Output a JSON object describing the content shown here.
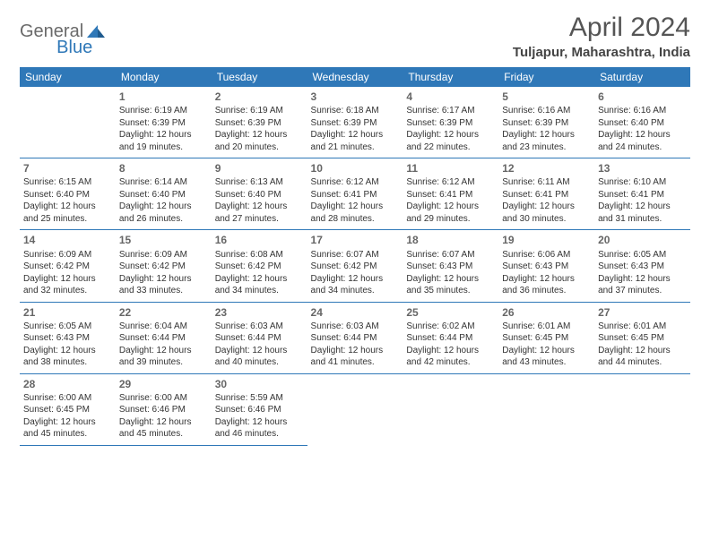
{
  "logo": {
    "general": "General",
    "blue": "Blue"
  },
  "header": {
    "title": "April 2024",
    "location": "Tuljapur, Maharashtra, India"
  },
  "colors": {
    "brand": "#2f78b8",
    "headerRow": "#2f78b8",
    "text": "#333333",
    "muted": "#666666",
    "bg": "#ffffff"
  },
  "days": [
    "Sunday",
    "Monday",
    "Tuesday",
    "Wednesday",
    "Thursday",
    "Friday",
    "Saturday"
  ],
  "weeks": [
    [
      null,
      {
        "n": "1",
        "sr": "Sunrise: 6:19 AM",
        "ss": "Sunset: 6:39 PM",
        "dl": "Daylight: 12 hours and 19 minutes."
      },
      {
        "n": "2",
        "sr": "Sunrise: 6:19 AM",
        "ss": "Sunset: 6:39 PM",
        "dl": "Daylight: 12 hours and 20 minutes."
      },
      {
        "n": "3",
        "sr": "Sunrise: 6:18 AM",
        "ss": "Sunset: 6:39 PM",
        "dl": "Daylight: 12 hours and 21 minutes."
      },
      {
        "n": "4",
        "sr": "Sunrise: 6:17 AM",
        "ss": "Sunset: 6:39 PM",
        "dl": "Daylight: 12 hours and 22 minutes."
      },
      {
        "n": "5",
        "sr": "Sunrise: 6:16 AM",
        "ss": "Sunset: 6:39 PM",
        "dl": "Daylight: 12 hours and 23 minutes."
      },
      {
        "n": "6",
        "sr": "Sunrise: 6:16 AM",
        "ss": "Sunset: 6:40 PM",
        "dl": "Daylight: 12 hours and 24 minutes."
      }
    ],
    [
      {
        "n": "7",
        "sr": "Sunrise: 6:15 AM",
        "ss": "Sunset: 6:40 PM",
        "dl": "Daylight: 12 hours and 25 minutes."
      },
      {
        "n": "8",
        "sr": "Sunrise: 6:14 AM",
        "ss": "Sunset: 6:40 PM",
        "dl": "Daylight: 12 hours and 26 minutes."
      },
      {
        "n": "9",
        "sr": "Sunrise: 6:13 AM",
        "ss": "Sunset: 6:40 PM",
        "dl": "Daylight: 12 hours and 27 minutes."
      },
      {
        "n": "10",
        "sr": "Sunrise: 6:12 AM",
        "ss": "Sunset: 6:41 PM",
        "dl": "Daylight: 12 hours and 28 minutes."
      },
      {
        "n": "11",
        "sr": "Sunrise: 6:12 AM",
        "ss": "Sunset: 6:41 PM",
        "dl": "Daylight: 12 hours and 29 minutes."
      },
      {
        "n": "12",
        "sr": "Sunrise: 6:11 AM",
        "ss": "Sunset: 6:41 PM",
        "dl": "Daylight: 12 hours and 30 minutes."
      },
      {
        "n": "13",
        "sr": "Sunrise: 6:10 AM",
        "ss": "Sunset: 6:41 PM",
        "dl": "Daylight: 12 hours and 31 minutes."
      }
    ],
    [
      {
        "n": "14",
        "sr": "Sunrise: 6:09 AM",
        "ss": "Sunset: 6:42 PM",
        "dl": "Daylight: 12 hours and 32 minutes."
      },
      {
        "n": "15",
        "sr": "Sunrise: 6:09 AM",
        "ss": "Sunset: 6:42 PM",
        "dl": "Daylight: 12 hours and 33 minutes."
      },
      {
        "n": "16",
        "sr": "Sunrise: 6:08 AM",
        "ss": "Sunset: 6:42 PM",
        "dl": "Daylight: 12 hours and 34 minutes."
      },
      {
        "n": "17",
        "sr": "Sunrise: 6:07 AM",
        "ss": "Sunset: 6:42 PM",
        "dl": "Daylight: 12 hours and 34 minutes."
      },
      {
        "n": "18",
        "sr": "Sunrise: 6:07 AM",
        "ss": "Sunset: 6:43 PM",
        "dl": "Daylight: 12 hours and 35 minutes."
      },
      {
        "n": "19",
        "sr": "Sunrise: 6:06 AM",
        "ss": "Sunset: 6:43 PM",
        "dl": "Daylight: 12 hours and 36 minutes."
      },
      {
        "n": "20",
        "sr": "Sunrise: 6:05 AM",
        "ss": "Sunset: 6:43 PM",
        "dl": "Daylight: 12 hours and 37 minutes."
      }
    ],
    [
      {
        "n": "21",
        "sr": "Sunrise: 6:05 AM",
        "ss": "Sunset: 6:43 PM",
        "dl": "Daylight: 12 hours and 38 minutes."
      },
      {
        "n": "22",
        "sr": "Sunrise: 6:04 AM",
        "ss": "Sunset: 6:44 PM",
        "dl": "Daylight: 12 hours and 39 minutes."
      },
      {
        "n": "23",
        "sr": "Sunrise: 6:03 AM",
        "ss": "Sunset: 6:44 PM",
        "dl": "Daylight: 12 hours and 40 minutes."
      },
      {
        "n": "24",
        "sr": "Sunrise: 6:03 AM",
        "ss": "Sunset: 6:44 PM",
        "dl": "Daylight: 12 hours and 41 minutes."
      },
      {
        "n": "25",
        "sr": "Sunrise: 6:02 AM",
        "ss": "Sunset: 6:44 PM",
        "dl": "Daylight: 12 hours and 42 minutes."
      },
      {
        "n": "26",
        "sr": "Sunrise: 6:01 AM",
        "ss": "Sunset: 6:45 PM",
        "dl": "Daylight: 12 hours and 43 minutes."
      },
      {
        "n": "27",
        "sr": "Sunrise: 6:01 AM",
        "ss": "Sunset: 6:45 PM",
        "dl": "Daylight: 12 hours and 44 minutes."
      }
    ],
    [
      {
        "n": "28",
        "sr": "Sunrise: 6:00 AM",
        "ss": "Sunset: 6:45 PM",
        "dl": "Daylight: 12 hours and 45 minutes."
      },
      {
        "n": "29",
        "sr": "Sunrise: 6:00 AM",
        "ss": "Sunset: 6:46 PM",
        "dl": "Daylight: 12 hours and 45 minutes."
      },
      {
        "n": "30",
        "sr": "Sunrise: 5:59 AM",
        "ss": "Sunset: 6:46 PM",
        "dl": "Daylight: 12 hours and 46 minutes."
      },
      null,
      null,
      null,
      null
    ]
  ]
}
